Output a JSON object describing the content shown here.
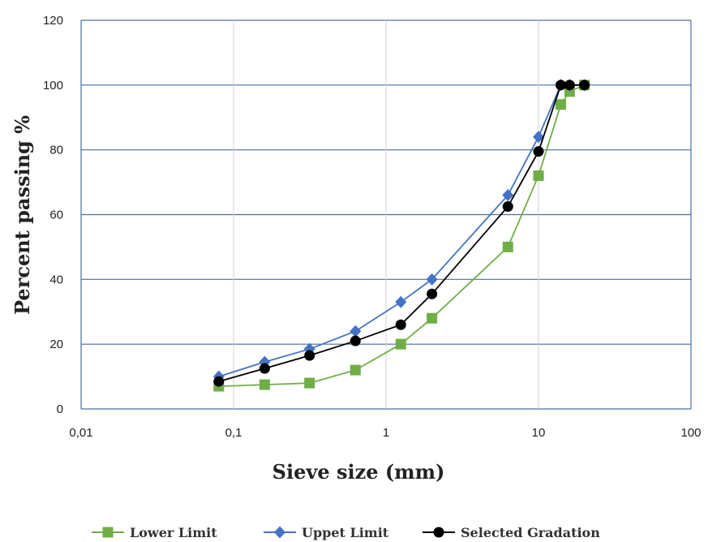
{
  "chart_data": {
    "type": "line",
    "xscale": "log",
    "xlabel": "Sieve size (mm)",
    "ylabel": "Percent passing %",
    "xlim": [
      0.01,
      100
    ],
    "ylim": [
      0,
      120
    ],
    "x_ticks": [
      "0,01",
      "0,1",
      "1",
      "10",
      "100"
    ],
    "y_ticks": [
      "0",
      "20",
      "40",
      "60",
      "80",
      "100",
      "120"
    ],
    "grid": true,
    "legend_position": "bottom",
    "series": [
      {
        "name": "Lower Limit",
        "color": "#70ad47",
        "marker": "square",
        "x": [
          0.08,
          0.16,
          0.315,
          0.63,
          1.25,
          2,
          6.3,
          10,
          14,
          16,
          20
        ],
        "y": [
          7,
          7.5,
          8,
          12,
          20,
          28,
          50,
          72,
          94,
          98,
          100
        ]
      },
      {
        "name": "Uppet Limit",
        "color": "#4472c4",
        "marker": "diamond",
        "x": [
          0.08,
          0.16,
          0.315,
          0.63,
          1.25,
          2,
          6.3,
          10,
          14,
          16,
          20
        ],
        "y": [
          10,
          14.5,
          18.5,
          24,
          33,
          40,
          66,
          84,
          100,
          100,
          100
        ]
      },
      {
        "name": "Selected Gradation",
        "color": "#000000",
        "marker": "circle",
        "x": [
          0.08,
          0.16,
          0.315,
          0.63,
          1.25,
          2,
          6.3,
          10,
          14,
          16,
          20
        ],
        "y": [
          8.5,
          12.5,
          16.5,
          21,
          26,
          35.5,
          62.5,
          79.5,
          100,
          100,
          100
        ]
      }
    ]
  }
}
